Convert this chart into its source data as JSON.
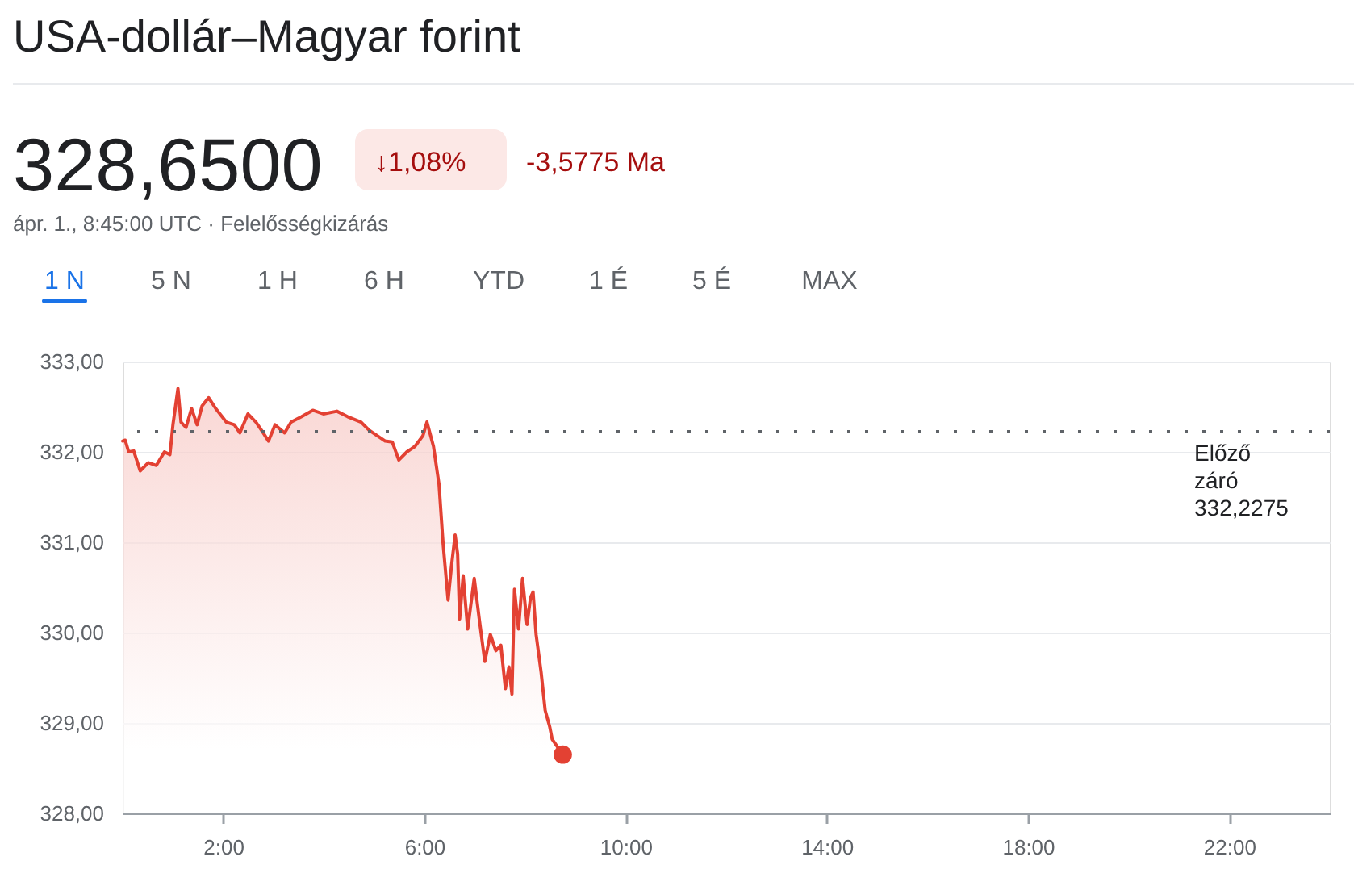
{
  "chart_data": {
    "type": "area",
    "title": "USA-dollár–Magyar forint",
    "annotations": [
      "328,6500",
      "↓1,08%",
      "-3,5775 Ma",
      "ápr. 1., 8:45:00 UTC · Felelősségkizárás",
      "1 N",
      "5 N",
      "1 H",
      "6 H",
      "YTD",
      "1 É",
      "5 É",
      "MAX"
    ],
    "x": [
      0,
      0.05,
      0.12,
      0.22,
      0.35,
      0.51,
      0.67,
      0.83,
      0.94,
      1.0,
      1.1,
      1.16,
      1.26,
      1.37,
      1.48,
      1.58,
      1.71,
      1.85,
      2.06,
      2.22,
      2.33,
      2.49,
      2.65,
      2.76,
      2.9,
      3.03,
      3.22,
      3.35,
      3.56,
      3.78,
      3.99,
      4.26,
      4.47,
      4.74,
      4.9,
      5.06,
      5.22,
      5.36,
      5.49,
      5.65,
      5.81,
      5.97,
      6.05,
      6.18,
      6.29,
      6.37,
      6.47,
      6.54,
      6.61,
      6.66,
      6.7,
      6.77,
      6.86,
      6.99,
      7.09,
      7.2,
      7.31,
      7.42,
      7.52,
      7.61,
      7.68,
      7.74,
      7.79,
      7.87,
      7.95,
      8.04,
      8.11,
      8.16,
      8.22,
      8.32,
      8.4,
      8.49,
      8.54,
      8.75
    ],
    "series": [
      {
        "color": "#e34133",
        "values": [
          332.12,
          332.13,
          332.0,
          332.01,
          331.79,
          331.88,
          331.85,
          332.0,
          331.97,
          332.3,
          332.7,
          332.33,
          332.27,
          332.48,
          332.3,
          332.51,
          332.6,
          332.48,
          332.33,
          332.3,
          332.21,
          332.42,
          332.33,
          332.24,
          332.12,
          332.3,
          332.21,
          332.33,
          332.39,
          332.46,
          332.42,
          332.45,
          332.39,
          332.33,
          332.24,
          332.18,
          332.12,
          332.11,
          331.91,
          332.0,
          332.06,
          332.18,
          332.33,
          332.06,
          331.64,
          330.99,
          330.36,
          330.75,
          331.08,
          330.87,
          330.15,
          330.63,
          330.04,
          330.6,
          330.15,
          329.68,
          329.98,
          329.8,
          329.86,
          329.38,
          329.62,
          329.32,
          330.48,
          330.04,
          330.6,
          330.09,
          330.39,
          330.45,
          329.98,
          329.56,
          329.14,
          328.96,
          328.82,
          328.65
        ]
      },
      {
        "type": "scatter",
        "color": "#e34133",
        "x": [
          8.75
        ],
        "values": [
          328.65
        ]
      }
    ],
    "xlim": [
      0,
      24
    ],
    "xticks": [
      {
        "value": 2,
        "label": "2:00"
      },
      {
        "value": 6,
        "label": "6:00"
      },
      {
        "value": 10,
        "label": "10:00"
      },
      {
        "value": 14,
        "label": "14:00"
      },
      {
        "value": 18,
        "label": "18:00"
      },
      {
        "value": 22,
        "label": "22:00"
      }
    ],
    "ylim": [
      328,
      333
    ],
    "yticks": [
      {
        "value": 328,
        "label": "328,00"
      },
      {
        "value": 329,
        "label": "329,00"
      },
      {
        "value": 330,
        "label": "330,00"
      },
      {
        "value": 331,
        "label": "331,00"
      },
      {
        "value": 332,
        "label": "332,00"
      },
      {
        "value": 333,
        "label": "333,00"
      }
    ],
    "ref_lines": [
      {
        "axis": "y",
        "value": 332.2275,
        "label": "Előző záró 332,2275",
        "line_style": "dotted"
      }
    ],
    "grid": "y"
  }
}
